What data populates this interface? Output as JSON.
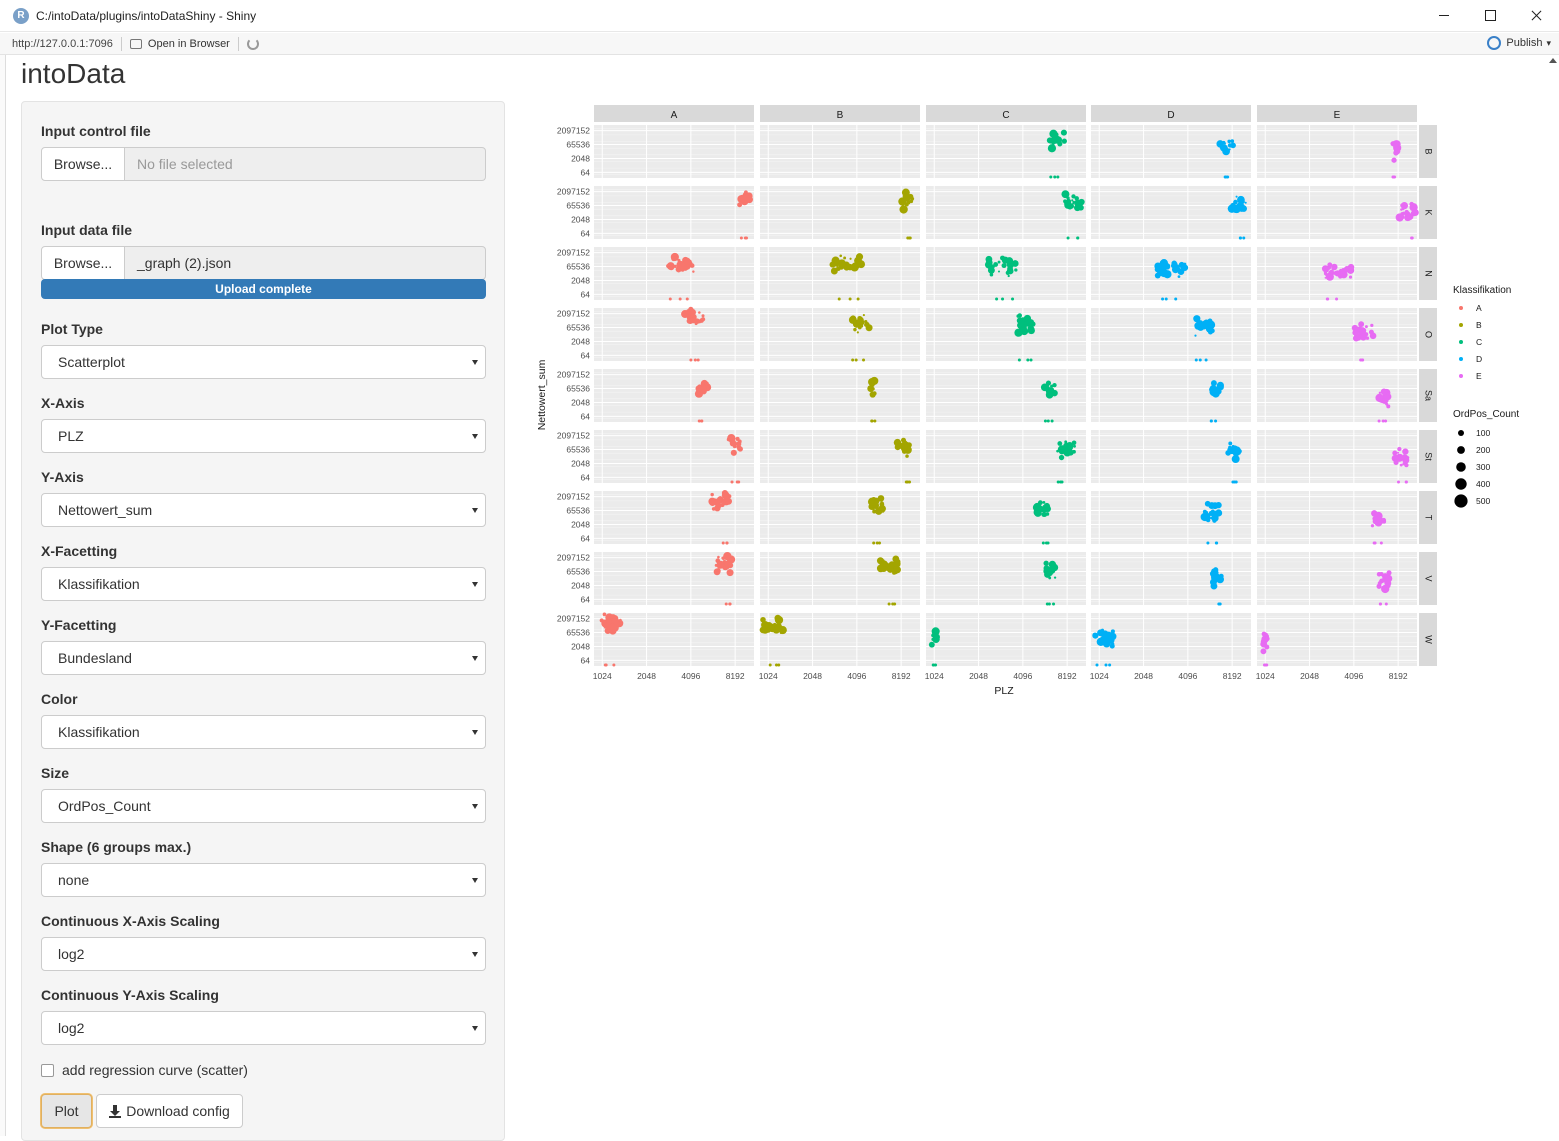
{
  "window": {
    "title": "C:/intoData/plugins/intoDataShiny - Shiny",
    "app_icon": "R"
  },
  "toolbar": {
    "url": "http://127.0.0.1:7096",
    "open_in_browser": "Open in Browser",
    "publish": "Publish"
  },
  "app": {
    "title": "intoData"
  },
  "sidebar": {
    "control_file": {
      "label": "Input control file",
      "browse": "Browse...",
      "value": "No file selected"
    },
    "data_file": {
      "label": "Input data file",
      "browse": "Browse...",
      "value": "_graph (2).json",
      "progress": "Upload complete",
      "progress_fraction": 1.0
    },
    "selects": [
      {
        "label": "Plot Type",
        "value": "Scatterplot"
      },
      {
        "label": "X-Axis",
        "value": "PLZ"
      },
      {
        "label": "Y-Axis",
        "value": "Nettowert_sum"
      },
      {
        "label": "X-Facetting",
        "value": "Klassifikation"
      },
      {
        "label": "Y-Facetting",
        "value": "Bundesland"
      },
      {
        "label": "Color",
        "value": "Klassifikation"
      },
      {
        "label": "Size",
        "value": "OrdPos_Count"
      },
      {
        "label": "Shape (6 groups max.)",
        "value": "none"
      },
      {
        "label": "Continuous X-Axis Scaling",
        "value": "log2"
      },
      {
        "label": "Continuous Y-Axis Scaling",
        "value": "log2"
      }
    ],
    "regression_checkbox": {
      "label": "add regression curve (scatter)",
      "checked": false
    },
    "plot_button": "Plot",
    "download_button": "Download config"
  },
  "chart_data": {
    "type": "scatter",
    "xlabel": "PLZ",
    "ylabel": "Nettowert_sum",
    "x_scale": "log2",
    "y_scale": "log2",
    "x_ticks": [
      "1024",
      "2048",
      "4096",
      "8192"
    ],
    "y_ticks": [
      "2097152",
      "65536",
      "2048",
      "64"
    ],
    "col_facets": [
      "A",
      "B",
      "C",
      "D",
      "E"
    ],
    "row_facets": [
      "B",
      "K",
      "N",
      "O",
      "Sa",
      "St",
      "T",
      "V",
      "W"
    ],
    "colors": {
      "A": "#F8766D",
      "B": "#A3A500",
      "C": "#00BF7D",
      "D": "#00B0F6",
      "E": "#E76BF3"
    },
    "panel_bg": "#EBEBEB",
    "strip_bg": "#D9D9D9",
    "legend_color": {
      "title": "Klassifikation",
      "entries": [
        "A",
        "B",
        "C",
        "D",
        "E"
      ]
    },
    "legend_size": {
      "title": "OrdPos_Count",
      "entries": [
        "100",
        "200",
        "300",
        "400",
        "500"
      ]
    },
    "clusters": [
      {
        "row": "B",
        "col": "C",
        "x": 7000,
        "y": 262144,
        "spread": 0.3
      },
      {
        "row": "B",
        "col": "D",
        "x": 7500,
        "y": 65536,
        "spread": 0.25
      },
      {
        "row": "B",
        "col": "E",
        "x": 7800,
        "y": 16384,
        "spread": 0.1
      },
      {
        "row": "K",
        "col": "A",
        "x": 9500,
        "y": 524288,
        "spread": 0.2
      },
      {
        "row": "K",
        "col": "B",
        "x": 9000,
        "y": 262144,
        "spread": 0.2
      },
      {
        "row": "K",
        "col": "C",
        "x": 9000,
        "y": 131072,
        "spread": 0.35
      },
      {
        "row": "K",
        "col": "D",
        "x": 9200,
        "y": 65536,
        "spread": 0.3
      },
      {
        "row": "K",
        "col": "E",
        "x": 9500,
        "y": 16384,
        "spread": 0.3
      },
      {
        "row": "N",
        "col": "A",
        "x": 3500,
        "y": 131072,
        "spread": 0.5
      },
      {
        "row": "N",
        "col": "B",
        "x": 3500,
        "y": 131072,
        "spread": 0.55
      },
      {
        "row": "N",
        "col": "C",
        "x": 3000,
        "y": 65536,
        "spread": 0.55
      },
      {
        "row": "N",
        "col": "D",
        "x": 3200,
        "y": 32768,
        "spread": 0.55
      },
      {
        "row": "N",
        "col": "E",
        "x": 3200,
        "y": 16384,
        "spread": 0.5
      },
      {
        "row": "O",
        "col": "A",
        "x": 4300,
        "y": 524288,
        "spread": 0.35
      },
      {
        "row": "O",
        "col": "B",
        "x": 4300,
        "y": 262144,
        "spread": 0.35
      },
      {
        "row": "O",
        "col": "C",
        "x": 4300,
        "y": 131072,
        "spread": 0.35
      },
      {
        "row": "O",
        "col": "D",
        "x": 5200,
        "y": 65536,
        "spread": 0.35
      },
      {
        "row": "O",
        "col": "E",
        "x": 4800,
        "y": 16384,
        "spread": 0.35
      },
      {
        "row": "Sa",
        "col": "A",
        "x": 5000,
        "y": 65536,
        "spread": 0.2
      },
      {
        "row": "Sa",
        "col": "B",
        "x": 5300,
        "y": 131072,
        "spread": 0.1
      },
      {
        "row": "Sa",
        "col": "C",
        "x": 6200,
        "y": 65536,
        "spread": 0.2
      },
      {
        "row": "Sa",
        "col": "D",
        "x": 6300,
        "y": 32768,
        "spread": 0.2
      },
      {
        "row": "Sa",
        "col": "E",
        "x": 6500,
        "y": 8192,
        "spread": 0.2
      },
      {
        "row": "St",
        "col": "A",
        "x": 8000,
        "y": 262144,
        "spread": 0.25
      },
      {
        "row": "St",
        "col": "B",
        "x": 8500,
        "y": 131072,
        "spread": 0.3
      },
      {
        "row": "St",
        "col": "C",
        "x": 8000,
        "y": 65536,
        "spread": 0.35
      },
      {
        "row": "St",
        "col": "D",
        "x": 8500,
        "y": 32768,
        "spread": 0.25
      },
      {
        "row": "St",
        "col": "E",
        "x": 8600,
        "y": 8192,
        "spread": 0.25
      },
      {
        "row": "T",
        "col": "A",
        "x": 6600,
        "y": 524288,
        "spread": 0.35
      },
      {
        "row": "T",
        "col": "B",
        "x": 5800,
        "y": 262144,
        "spread": 0.3
      },
      {
        "row": "T",
        "col": "C",
        "x": 5500,
        "y": 65536,
        "spread": 0.3
      },
      {
        "row": "T",
        "col": "D",
        "x": 5900,
        "y": 32768,
        "spread": 0.3
      },
      {
        "row": "T",
        "col": "E",
        "x": 6000,
        "y": 8192,
        "spread": 0.25
      },
      {
        "row": "V",
        "col": "A",
        "x": 7000,
        "y": 524288,
        "spread": 0.35
      },
      {
        "row": "V",
        "col": "B",
        "x": 6800,
        "y": 262144,
        "spread": 0.35
      },
      {
        "row": "V",
        "col": "C",
        "x": 6400,
        "y": 65536,
        "spread": 0.25
      },
      {
        "row": "V",
        "col": "D",
        "x": 6600,
        "y": 16384,
        "spread": 0.2
      },
      {
        "row": "V",
        "col": "E",
        "x": 6600,
        "y": 8192,
        "spread": 0.2
      },
      {
        "row": "W",
        "col": "A",
        "x": 1180,
        "y": 524288,
        "spread": 0.4
      },
      {
        "row": "W",
        "col": "B",
        "x": 1100,
        "y": 262144,
        "spread": 0.4
      },
      {
        "row": "W",
        "col": "C",
        "x": 1020,
        "y": 16384,
        "spread": 0.1
      },
      {
        "row": "W",
        "col": "D",
        "x": 1100,
        "y": 16384,
        "spread": 0.35
      },
      {
        "row": "W",
        "col": "E",
        "x": 1020,
        "y": 8192,
        "spread": 0.1
      }
    ]
  }
}
